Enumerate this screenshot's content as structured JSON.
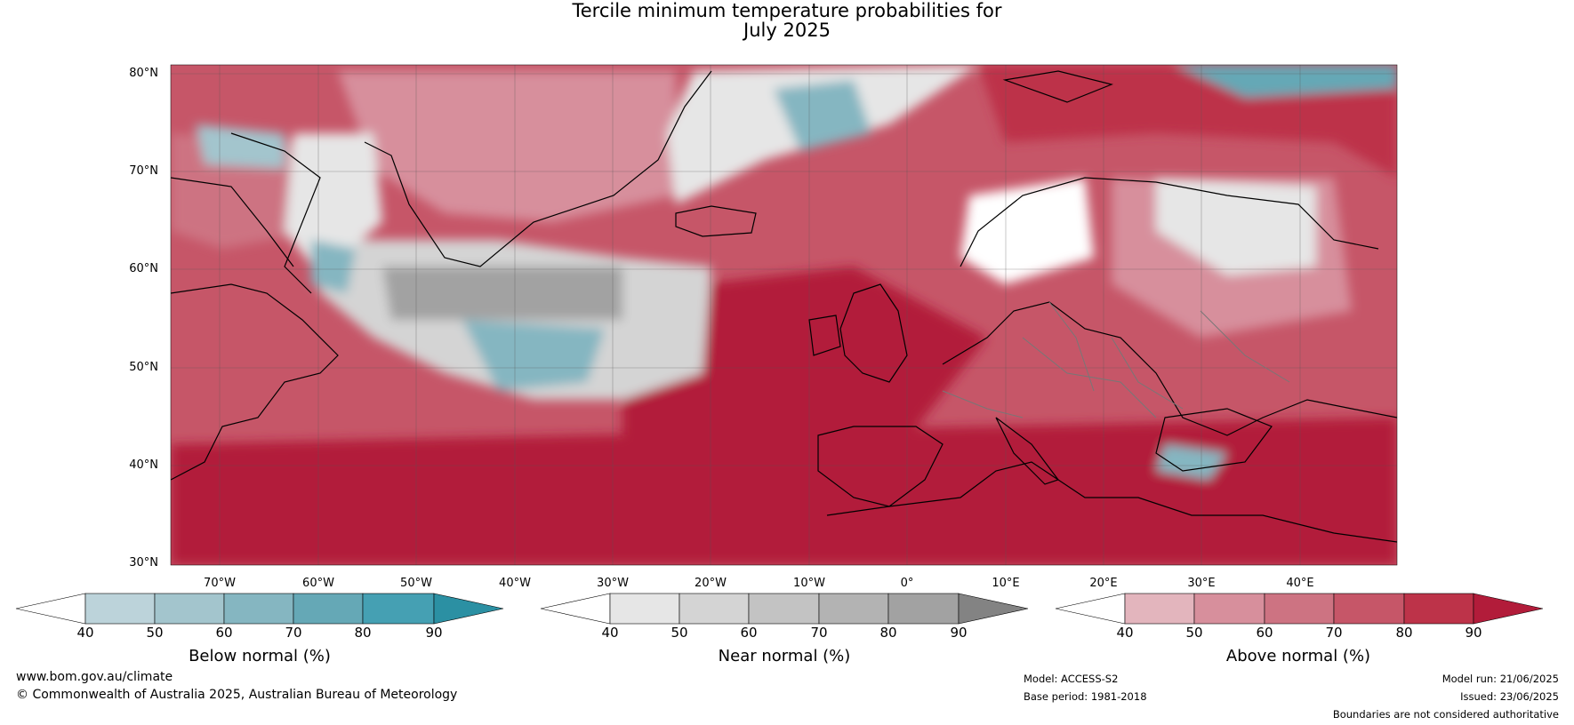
{
  "title": {
    "line1": "Tercile minimum temperature probabilities for",
    "line2": "July 2025"
  },
  "map": {
    "lat_labels": [
      "80°N",
      "70°N",
      "60°N",
      "50°N",
      "40°N",
      "30°N"
    ],
    "lon_labels": [
      "70°W",
      "60°W",
      "50°W",
      "40°W",
      "30°W",
      "20°W",
      "10°W",
      "0°",
      "10°E",
      "20°E",
      "30°E",
      "40°E"
    ],
    "lat_range": [
      30,
      81
    ],
    "lon_range": [
      -75,
      50
    ]
  },
  "colorbars": [
    {
      "label": "Below normal (%)",
      "ticks": [
        "40",
        "50",
        "60",
        "70",
        "80",
        "90"
      ],
      "colors": [
        "#ffffff",
        "#bcd3da",
        "#a3c5cd",
        "#85b6c1",
        "#65a8b6",
        "#45a0b3",
        "#2b90a3"
      ]
    },
    {
      "label": "Near normal (%)",
      "ticks": [
        "40",
        "50",
        "60",
        "70",
        "80",
        "90"
      ],
      "colors": [
        "#ffffff",
        "#e6e6e6",
        "#d4d4d4",
        "#c3c3c3",
        "#b3b3b3",
        "#a2a2a2",
        "#838383"
      ]
    },
    {
      "label": "Above normal (%)",
      "ticks": [
        "40",
        "50",
        "60",
        "70",
        "80",
        "90"
      ],
      "colors": [
        "#ffffff",
        "#e3b5bd",
        "#d78f9c",
        "#cd7382",
        "#c65668",
        "#bd3349",
        "#b21c3a"
      ]
    }
  ],
  "footer": {
    "website": "www.bom.gov.au/climate",
    "copyright": "© Commonwealth of Australia 2025, Australian Bureau of Meteorology",
    "model": "Model: ACCESS-S2",
    "base_period": "Base period: 1981-2018",
    "model_run": "Model run: 21/06/2025",
    "issued": "Issued: 23/06/2025",
    "disclaimer": "Boundaries are not considered authoritative"
  }
}
